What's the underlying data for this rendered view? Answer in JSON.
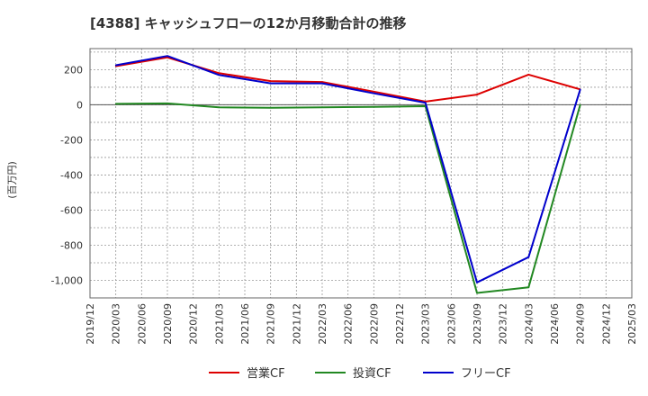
{
  "chart_data": {
    "type": "line",
    "title": "[4388]  キャッシュフローの12か月移動合計の推移",
    "ylabel": "(百万円)",
    "xlabel": "",
    "ylim": [
      -1100,
      320
    ],
    "yticks": [
      200,
      0,
      -200,
      -400,
      -600,
      -800,
      -1000
    ],
    "ytick_labels": [
      "200",
      "0",
      "-200",
      "-400",
      "-600",
      "-800",
      "-1,000"
    ],
    "categories": [
      "2019/12",
      "2020/03",
      "2020/06",
      "2020/09",
      "2020/12",
      "2021/03",
      "2021/06",
      "2021/09",
      "2021/12",
      "2022/03",
      "2022/06",
      "2022/09",
      "2022/12",
      "2023/03",
      "2023/06",
      "2023/09",
      "2023/12",
      "2024/03",
      "2024/06",
      "2024/09",
      "2024/12",
      "2025/03"
    ],
    "grid": true,
    "legend_position": "bottom",
    "series": [
      {
        "name": "営業CF",
        "color": "#dd0000",
        "points": [
          {
            "x": "2020/03",
            "y": 220
          },
          {
            "x": "2020/09",
            "y": 270
          },
          {
            "x": "2021/03",
            "y": 180
          },
          {
            "x": "2021/09",
            "y": 135
          },
          {
            "x": "2022/03",
            "y": 130
          },
          {
            "x": "2022/09",
            "y": 75
          },
          {
            "x": "2023/03",
            "y": 18
          },
          {
            "x": "2023/09",
            "y": 58
          },
          {
            "x": "2024/03",
            "y": 172
          },
          {
            "x": "2024/09",
            "y": 88
          }
        ]
      },
      {
        "name": "投資CF",
        "color": "#228822",
        "points": [
          {
            "x": "2020/03",
            "y": 5
          },
          {
            "x": "2020/09",
            "y": 8
          },
          {
            "x": "2021/03",
            "y": -15
          },
          {
            "x": "2021/09",
            "y": -17
          },
          {
            "x": "2022/03",
            "y": -14
          },
          {
            "x": "2022/09",
            "y": -12
          },
          {
            "x": "2023/03",
            "y": -8
          },
          {
            "x": "2023/09",
            "y": -1072
          },
          {
            "x": "2024/03",
            "y": -1040
          },
          {
            "x": "2024/09",
            "y": 0
          }
        ]
      },
      {
        "name": "フリーCF",
        "color": "#0000cc",
        "points": [
          {
            "x": "2020/03",
            "y": 225
          },
          {
            "x": "2020/09",
            "y": 278
          },
          {
            "x": "2021/03",
            "y": 170
          },
          {
            "x": "2021/09",
            "y": 122
          },
          {
            "x": "2022/03",
            "y": 122
          },
          {
            "x": "2022/09",
            "y": 65
          },
          {
            "x": "2023/03",
            "y": 12
          },
          {
            "x": "2023/09",
            "y": -1012
          },
          {
            "x": "2024/03",
            "y": -868
          },
          {
            "x": "2024/09",
            "y": 88
          }
        ]
      }
    ]
  }
}
